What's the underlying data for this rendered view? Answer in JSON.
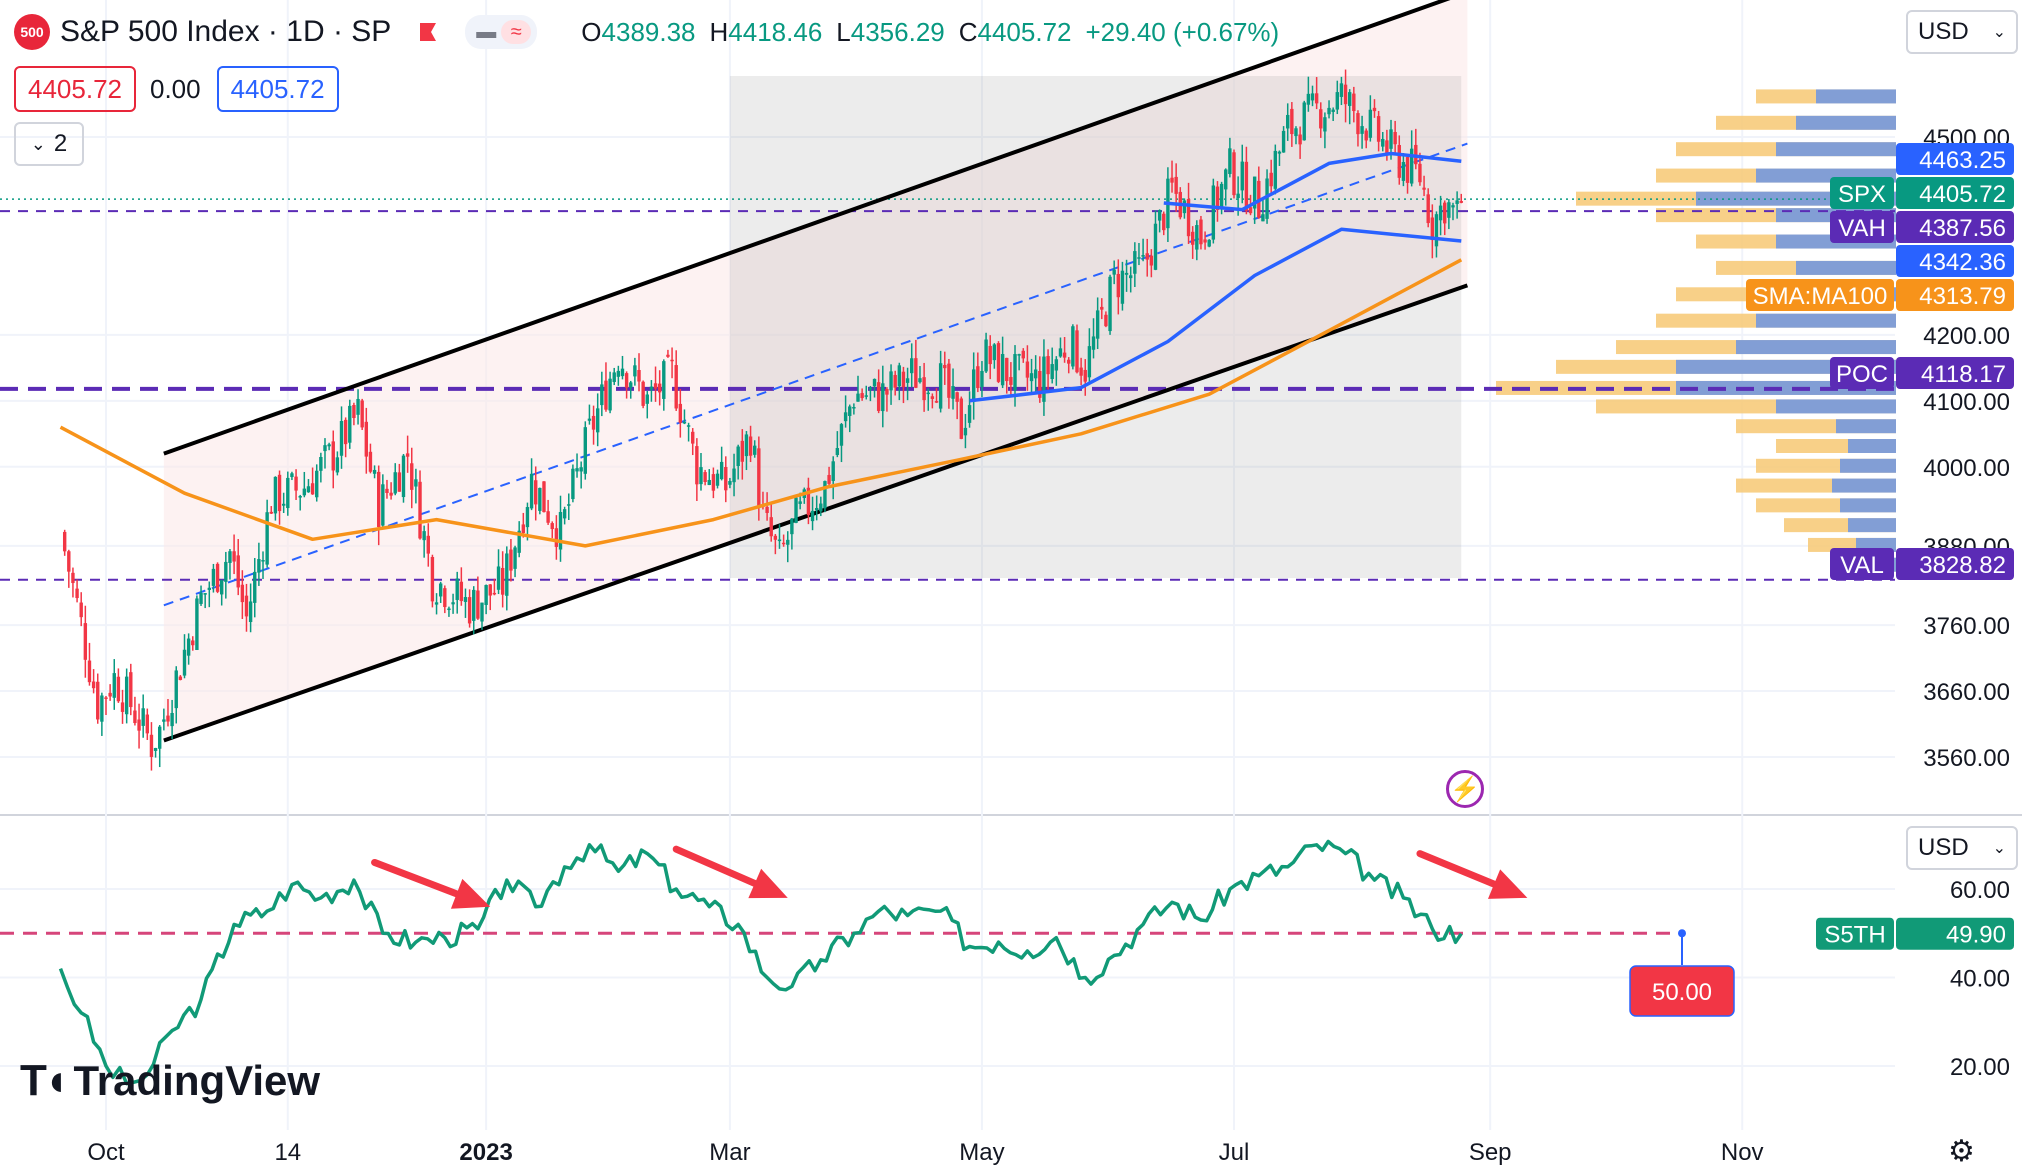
{
  "header": {
    "logo_text": "500",
    "title": "S&P 500 Index · 1D · SP",
    "ohlc": [
      {
        "key": "O",
        "value": "4389.38"
      },
      {
        "key": "H",
        "value": "4418.46"
      },
      {
        "key": "L",
        "value": "4356.29"
      },
      {
        "key": "C",
        "value": "4405.72"
      }
    ],
    "change": "+29.40 (+0.67%)",
    "sell_price": "4405.72",
    "spread": "0.00",
    "buy_price": "4405.72",
    "collapse_count": "2",
    "currency": "USD",
    "currency_indicator": "USD"
  },
  "watermark": "TradingView",
  "colors": {
    "candle_up": "#089981",
    "candle_down": "#f23645",
    "sma_short": "#2962ff",
    "sma_long": "#f7931a",
    "channel": "#000000",
    "dashed_levels": "#5b2bb5",
    "breadth": "#119a77",
    "arrows": "#f23645",
    "threshold": "#d6457a"
  },
  "chart_data": [
    {
      "type": "candlestick",
      "title": "S&P 500 Index · 1D · SP",
      "y_ticks": [
        3560,
        3660,
        3760,
        3880,
        4000,
        4100,
        4200,
        4500
      ],
      "y_tick_labels": [
        "3560.00",
        "3660.00",
        "3760.00",
        "3880.00",
        "4000.00",
        "4100.00",
        "4200.00",
        "4500.00"
      ],
      "x_ticks": [
        "Oct",
        "14",
        "2023",
        "Mar",
        "May",
        "Jul",
        "Sep",
        "Nov"
      ],
      "ylim": [
        3480,
        4600
      ],
      "grid": true,
      "close_path": [
        {
          "date": "2022-09-20",
          "close": 3900
        },
        {
          "date": "2022-09-24",
          "close": 3790
        },
        {
          "date": "2022-09-29",
          "close": 3640
        },
        {
          "date": "2022-10-03",
          "close": 3680
        },
        {
          "date": "2022-10-07",
          "close": 3640
        },
        {
          "date": "2022-10-12",
          "close": 3580
        },
        {
          "date": "2022-10-14",
          "close": 3600
        },
        {
          "date": "2022-10-19",
          "close": 3700
        },
        {
          "date": "2022-10-24",
          "close": 3800
        },
        {
          "date": "2022-10-31",
          "close": 3870
        },
        {
          "date": "2022-11-04",
          "close": 3770
        },
        {
          "date": "2022-11-10",
          "close": 3950
        },
        {
          "date": "2022-11-18",
          "close": 3970
        },
        {
          "date": "2022-11-25",
          "close": 4020
        },
        {
          "date": "2022-12-01",
          "close": 4080
        },
        {
          "date": "2022-12-06",
          "close": 3940
        },
        {
          "date": "2022-12-13",
          "close": 4020
        },
        {
          "date": "2022-12-19",
          "close": 3830
        },
        {
          "date": "2022-12-28",
          "close": 3790
        },
        {
          "date": "2023-01-05",
          "close": 3820
        },
        {
          "date": "2023-01-12",
          "close": 3980
        },
        {
          "date": "2023-01-19",
          "close": 3900
        },
        {
          "date": "2023-01-26",
          "close": 4050
        },
        {
          "date": "2023-02-02",
          "close": 4170
        },
        {
          "date": "2023-02-09",
          "close": 4100
        },
        {
          "date": "2023-02-15",
          "close": 4140
        },
        {
          "date": "2023-02-21",
          "close": 4000
        },
        {
          "date": "2023-02-28",
          "close": 3970
        },
        {
          "date": "2023-03-06",
          "close": 4050
        },
        {
          "date": "2023-03-09",
          "close": 3920
        },
        {
          "date": "2023-03-13",
          "close": 3860
        },
        {
          "date": "2023-03-17",
          "close": 3920
        },
        {
          "date": "2023-03-24",
          "close": 3970
        },
        {
          "date": "2023-03-31",
          "close": 4110
        },
        {
          "date": "2023-04-07",
          "close": 4110
        },
        {
          "date": "2023-04-14",
          "close": 4140
        },
        {
          "date": "2023-04-21",
          "close": 4130
        },
        {
          "date": "2023-04-26",
          "close": 4060
        },
        {
          "date": "2023-05-01",
          "close": 4170
        },
        {
          "date": "2023-05-08",
          "close": 4140
        },
        {
          "date": "2023-05-15",
          "close": 4130
        },
        {
          "date": "2023-05-22",
          "close": 4190
        },
        {
          "date": "2023-05-26",
          "close": 4150
        },
        {
          "date": "2023-06-02",
          "close": 4280
        },
        {
          "date": "2023-06-09",
          "close": 4300
        },
        {
          "date": "2023-06-16",
          "close": 4420
        },
        {
          "date": "2023-06-23",
          "close": 4350
        },
        {
          "date": "2023-06-30",
          "close": 4450
        },
        {
          "date": "2023-07-07",
          "close": 4400
        },
        {
          "date": "2023-07-14",
          "close": 4510
        },
        {
          "date": "2023-07-21",
          "close": 4540
        },
        {
          "date": "2023-07-27",
          "close": 4560
        },
        {
          "date": "2023-08-02",
          "close": 4520
        },
        {
          "date": "2023-08-09",
          "close": 4470
        },
        {
          "date": "2023-08-15",
          "close": 4440
        },
        {
          "date": "2023-08-18",
          "close": 4370
        },
        {
          "date": "2023-08-21",
          "close": 4400
        },
        {
          "date": "2023-08-24",
          "close": 4380
        },
        {
          "date": "2023-08-25",
          "close": 4405.72
        }
      ],
      "sma_short_path": [
        {
          "date": "2023-04-28",
          "value": 4100
        },
        {
          "date": "2023-05-25",
          "value": 4120
        },
        {
          "date": "2023-06-15",
          "value": 4190
        },
        {
          "date": "2023-07-06",
          "value": 4290
        },
        {
          "date": "2023-07-27",
          "value": 4360
        },
        {
          "date": "2023-08-25",
          "value": 4342.36
        }
      ],
      "sma_mid_path": [
        {
          "date": "2023-06-14",
          "value": 4400
        },
        {
          "date": "2023-07-03",
          "value": 4390
        },
        {
          "date": "2023-07-24",
          "value": 4460
        },
        {
          "date": "2023-08-08",
          "value": 4475
        },
        {
          "date": "2023-08-25",
          "value": 4463.25
        }
      ],
      "sma_long_path": [
        {
          "date": "2022-09-20",
          "value": 4060
        },
        {
          "date": "2022-10-20",
          "value": 3960
        },
        {
          "date": "2022-11-20",
          "value": 3890
        },
        {
          "date": "2022-12-20",
          "value": 3920
        },
        {
          "date": "2023-01-25",
          "value": 3880
        },
        {
          "date": "2023-02-25",
          "value": 3920
        },
        {
          "date": "2023-03-25",
          "value": 3970
        },
        {
          "date": "2023-04-25",
          "value": 4010
        },
        {
          "date": "2023-05-25",
          "value": 4050
        },
        {
          "date": "2023-06-25",
          "value": 4110
        },
        {
          "date": "2023-07-25",
          "value": 4210
        },
        {
          "date": "2023-08-25",
          "value": 4313.79
        }
      ],
      "channel": {
        "upper": [
          {
            "date": "2022-10-15",
            "value": 4020
          },
          {
            "date": "2023-08-26",
            "value": 4720
          }
        ],
        "lower": [
          {
            "date": "2022-10-15",
            "value": 3585
          },
          {
            "date": "2023-08-26",
            "value": 4275
          }
        ],
        "midline": [
          {
            "date": "2022-10-15",
            "value": 3790
          },
          {
            "date": "2023-08-26",
            "value": 4490
          }
        ]
      },
      "volume_profile": {
        "range_start": "2023-03-01",
        "range_end": "2023-08-25",
        "rows": [
          {
            "price": 4560,
            "up": 0.35,
            "down": 0.2
          },
          {
            "price": 4520,
            "up": 0.45,
            "down": 0.25
          },
          {
            "price": 4480,
            "up": 0.55,
            "down": 0.3
          },
          {
            "price": 4440,
            "up": 0.6,
            "down": 0.35
          },
          {
            "price": 4405,
            "up": 0.8,
            "down": 0.5
          },
          {
            "price": 4380,
            "up": 0.6,
            "down": 0.3
          },
          {
            "price": 4340,
            "up": 0.5,
            "down": 0.3
          },
          {
            "price": 4300,
            "up": 0.45,
            "down": 0.25
          },
          {
            "price": 4260,
            "up": 0.55,
            "down": 0.3
          },
          {
            "price": 4220,
            "up": 0.6,
            "down": 0.35
          },
          {
            "price": 4180,
            "up": 0.7,
            "down": 0.4
          },
          {
            "price": 4150,
            "up": 0.85,
            "down": 0.55
          },
          {
            "price": 4118,
            "up": 1.0,
            "down": 0.55
          },
          {
            "price": 4090,
            "up": 0.75,
            "down": 0.3
          },
          {
            "price": 4060,
            "up": 0.4,
            "down": 0.15
          },
          {
            "price": 4030,
            "up": 0.3,
            "down": 0.12
          },
          {
            "price": 4000,
            "up": 0.35,
            "down": 0.14
          },
          {
            "price": 3970,
            "up": 0.4,
            "down": 0.16
          },
          {
            "price": 3940,
            "up": 0.35,
            "down": 0.14
          },
          {
            "price": 3910,
            "up": 0.28,
            "down": 0.12
          },
          {
            "price": 3880,
            "up": 0.22,
            "down": 0.1
          },
          {
            "price": 3850,
            "up": 0.15,
            "down": 0.08
          }
        ]
      },
      "levels": [
        {
          "name": "VAH",
          "value": 4387.56
        },
        {
          "name": "POC",
          "value": 4118.17
        },
        {
          "name": "VAL",
          "value": 3828.82
        }
      ],
      "price_labels": [
        {
          "label": "",
          "value": "4463.25",
          "price": 4463.25,
          "color": "#2962ff"
        },
        {
          "label": "SPX",
          "value": "4405.72",
          "price": 4405.72,
          "color": "#089981"
        },
        {
          "label": "VAH",
          "value": "4387.56",
          "price": 4387.56,
          "color": "#5b2bb5"
        },
        {
          "label": "",
          "value": "4342.36",
          "price": 4342.36,
          "color": "#2962ff"
        },
        {
          "label": "SMA:MA100",
          "value": "4313.79",
          "price": 4313.79,
          "color": "#f7931a"
        },
        {
          "label": "POC",
          "value": "4118.17",
          "price": 4118.17,
          "color": "#5b2bb5"
        },
        {
          "label": "VAL",
          "value": "3828.82",
          "price": 3828.82,
          "color": "#5b2bb5"
        }
      ]
    },
    {
      "type": "line",
      "series_name": "S5TH",
      "last_value": "49.90",
      "threshold": 50,
      "threshold_label": "50.00",
      "ylim": [
        10,
        75
      ],
      "y_ticks": [
        20,
        40,
        60
      ],
      "y_tick_labels": [
        "20.00",
        "40.00",
        "60.00"
      ],
      "points": [
        {
          "date": "2022-09-20",
          "value": 42
        },
        {
          "date": "2022-09-25",
          "value": 32
        },
        {
          "date": "2022-10-01",
          "value": 20
        },
        {
          "date": "2022-10-06",
          "value": 16
        },
        {
          "date": "2022-10-11",
          "value": 18
        },
        {
          "date": "2022-10-17",
          "value": 28
        },
        {
          "date": "2022-10-24",
          "value": 35
        },
        {
          "date": "2022-11-01",
          "value": 52
        },
        {
          "date": "2022-11-09",
          "value": 55
        },
        {
          "date": "2022-11-15",
          "value": 61
        },
        {
          "date": "2022-11-22",
          "value": 58
        },
        {
          "date": "2022-11-30",
          "value": 62
        },
        {
          "date": "2022-12-07",
          "value": 50
        },
        {
          "date": "2022-12-15",
          "value": 48
        },
        {
          "date": "2022-12-22",
          "value": 49
        },
        {
          "date": "2022-12-30",
          "value": 51
        },
        {
          "date": "2023-01-06",
          "value": 62
        },
        {
          "date": "2023-01-13",
          "value": 56
        },
        {
          "date": "2023-01-20",
          "value": 65
        },
        {
          "date": "2023-01-26",
          "value": 70
        },
        {
          "date": "2023-02-02",
          "value": 64
        },
        {
          "date": "2023-02-09",
          "value": 68
        },
        {
          "date": "2023-02-16",
          "value": 60
        },
        {
          "date": "2023-02-24",
          "value": 56
        },
        {
          "date": "2023-03-03",
          "value": 52
        },
        {
          "date": "2023-03-10",
          "value": 40
        },
        {
          "date": "2023-03-16",
          "value": 38
        },
        {
          "date": "2023-03-23",
          "value": 44
        },
        {
          "date": "2023-03-31",
          "value": 50
        },
        {
          "date": "2023-04-06",
          "value": 55
        },
        {
          "date": "2023-04-13",
          "value": 54
        },
        {
          "date": "2023-04-21",
          "value": 55
        },
        {
          "date": "2023-04-28",
          "value": 47
        },
        {
          "date": "2023-05-05",
          "value": 48
        },
        {
          "date": "2023-05-12",
          "value": 46
        },
        {
          "date": "2023-05-19",
          "value": 49
        },
        {
          "date": "2023-05-26",
          "value": 40
        },
        {
          "date": "2023-06-02",
          "value": 45
        },
        {
          "date": "2023-06-09",
          "value": 52
        },
        {
          "date": "2023-06-16",
          "value": 57
        },
        {
          "date": "2023-06-23",
          "value": 53
        },
        {
          "date": "2023-06-30",
          "value": 60
        },
        {
          "date": "2023-07-07",
          "value": 63
        },
        {
          "date": "2023-07-14",
          "value": 65
        },
        {
          "date": "2023-07-21",
          "value": 70
        },
        {
          "date": "2023-07-28",
          "value": 68
        },
        {
          "date": "2023-08-04",
          "value": 62
        },
        {
          "date": "2023-08-11",
          "value": 58
        },
        {
          "date": "2023-08-18",
          "value": 51
        },
        {
          "date": "2023-08-25",
          "value": 49.9
        }
      ],
      "arrows": [
        {
          "from_date": "2022-12-05",
          "from_value": 66,
          "to_date": "2023-01-02",
          "to_value": 56
        },
        {
          "from_date": "2023-02-16",
          "from_value": 69,
          "to_date": "2023-03-15",
          "to_value": 58
        },
        {
          "from_date": "2023-08-15",
          "from_value": 68,
          "to_date": "2023-09-10",
          "to_value": 58
        }
      ]
    }
  ]
}
